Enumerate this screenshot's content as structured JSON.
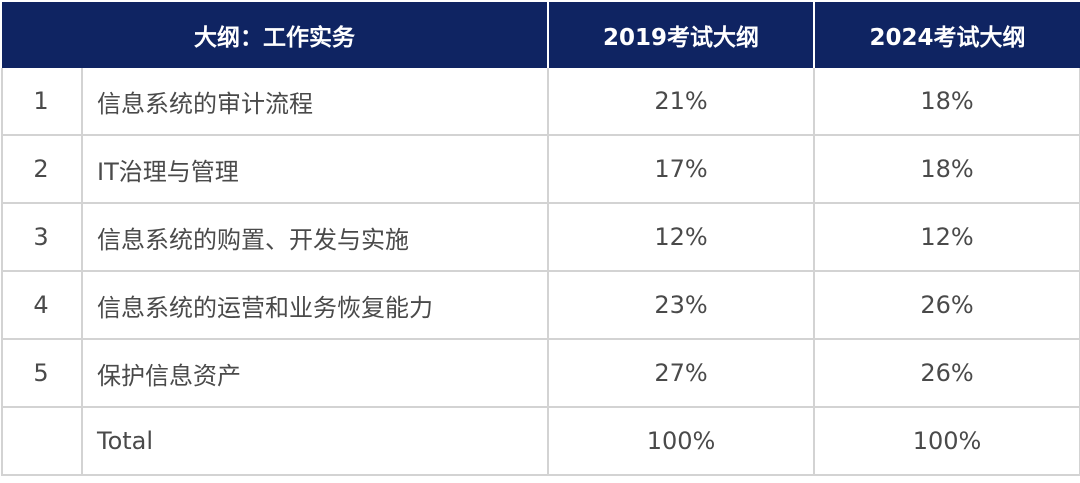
{
  "header": {
    "col_item": "大纲：工作实务",
    "col_2019": "2019考试大纲",
    "col_2024": "2024考试大纲"
  },
  "rows": [
    {
      "num": "1",
      "item": "信息系统的审计流程",
      "y2019": "21%",
      "y2024": "18%"
    },
    {
      "num": "2",
      "item": "IT治理与管理",
      "y2019": "17%",
      "y2024": "18%"
    },
    {
      "num": "3",
      "item": "信息系统的购置、开发与实施",
      "y2019": "12%",
      "y2024": "12%"
    },
    {
      "num": "4",
      "item": "信息系统的运营和业务恢复能力",
      "y2019": "23%",
      "y2024": "26%"
    },
    {
      "num": "5",
      "item": "保护信息资产",
      "y2019": "27%",
      "y2024": "26%"
    }
  ],
  "total": {
    "label": "Total",
    "y2019": "100%",
    "y2024": "100%"
  },
  "colors": {
    "header_bg": "#0f2462",
    "header_text": "#ffffff",
    "grid": "#d3d3d3",
    "body_text": "#4a4a4a"
  }
}
